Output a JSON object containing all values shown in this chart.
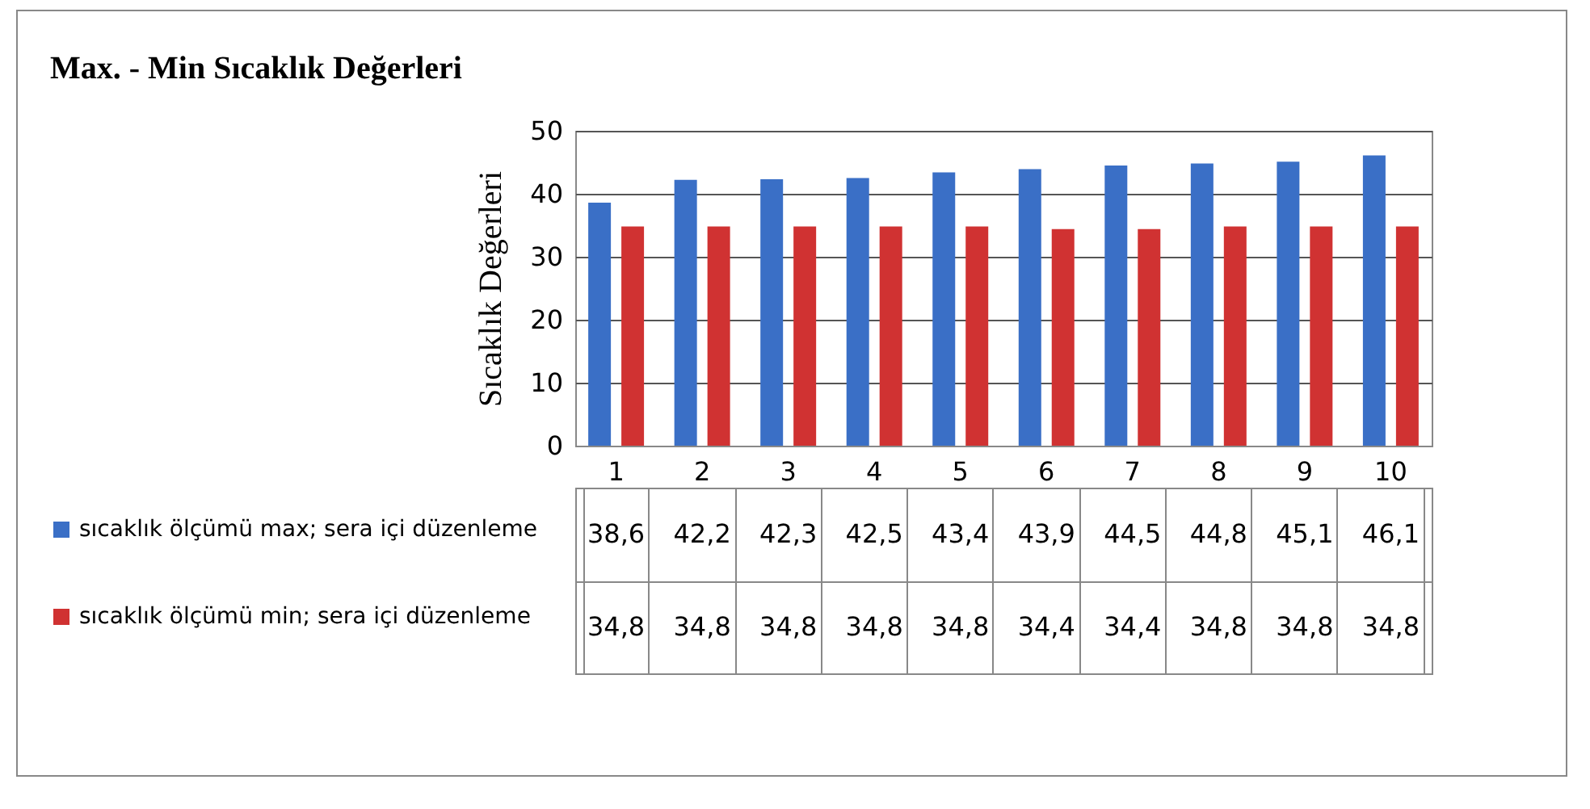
{
  "chart_data": {
    "type": "bar",
    "title": "Max. - Min Sıcaklık Değerleri",
    "ylabel": "Sıcaklık Değerleri",
    "categories": [
      "1",
      "2",
      "3",
      "4",
      "5",
      "6",
      "7",
      "8",
      "9",
      "10"
    ],
    "series": [
      {
        "name": "sıcaklık ölçümü max;  sera içi düzenleme",
        "color": "#3a6fc6",
        "values": [
          38.6,
          42.2,
          42.3,
          42.5,
          43.4,
          43.9,
          44.5,
          44.8,
          45.1,
          46.1
        ],
        "value_labels": [
          "38,6",
          "42,2",
          "42,3",
          "42,5",
          "43,4",
          "43,9",
          "44,5",
          "44,8",
          "45,1",
          "46,1"
        ]
      },
      {
        "name": "sıcaklık ölçümü min;  sera içi düzenleme",
        "color": "#d03232",
        "values": [
          34.8,
          34.8,
          34.8,
          34.8,
          34.8,
          34.4,
          34.4,
          34.8,
          34.8,
          34.8
        ],
        "value_labels": [
          "34,8",
          "34,8",
          "34,8",
          "34,8",
          "34,8",
          "34,4",
          "34,4",
          "34,8",
          "34,8",
          "34,8"
        ]
      }
    ],
    "ylim": [
      0,
      50
    ],
    "yticks": [
      0,
      10,
      20,
      30,
      40,
      50
    ],
    "grid": "y",
    "legend": "bottom left"
  }
}
